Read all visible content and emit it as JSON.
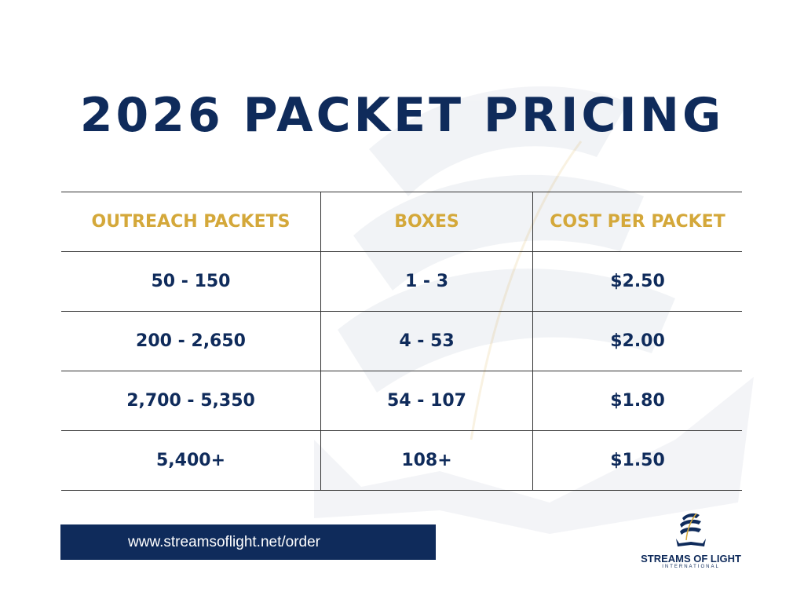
{
  "title": "2026 PACKET PRICING",
  "colors": {
    "navy": "#0f2b5b",
    "gold": "#d4a83a"
  },
  "table": {
    "headers": [
      "OUTREACH PACKETS",
      "BOXES",
      "COST PER PACKET"
    ],
    "rows": [
      [
        "50 - 150",
        "1 - 3",
        "$2.50"
      ],
      [
        "200 - 2,650",
        "4 - 53",
        "$2.00"
      ],
      [
        "2,700 - 5,350",
        "54 - 107",
        "$1.80"
      ],
      [
        "5,400+",
        "108+",
        "$1.50"
      ]
    ]
  },
  "footer": {
    "url": "www.streamsoflight.net/order"
  },
  "logo": {
    "name": "STREAMS OF LIGHT",
    "sub": "INTERNATIONAL"
  }
}
